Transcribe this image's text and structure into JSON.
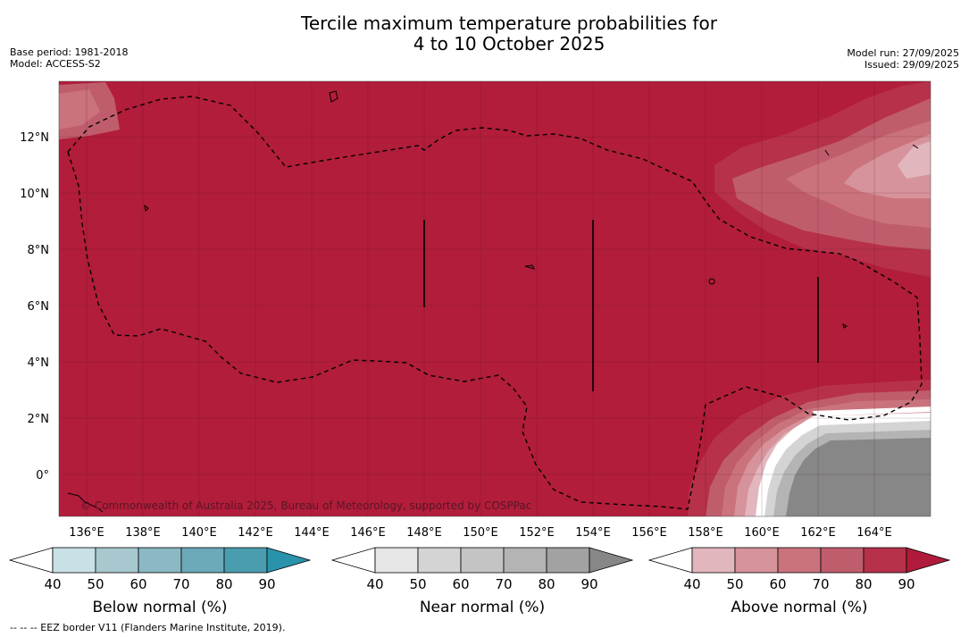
{
  "title_line1": "Tercile maximum temperature probabilities for",
  "title_line2": "4 to 10 October 2025",
  "base_period": "Base period: 1981-2018",
  "model": "Model: ACCESS-S2",
  "model_run": "Model run: 27/09/2025",
  "issued": "Issued: 29/09/2025",
  "copyright": "© Commonwealth of Australia 2025, Bureau of Meteorology, supported by COSPPac",
  "footnote": "--  --  -- EEZ border V11 (Flanders Marine Institute, 2019).",
  "lon_labels": [
    "136°E",
    "138°E",
    "140°E",
    "142°E",
    "144°E",
    "146°E",
    "148°E",
    "150°E",
    "152°E",
    "154°E",
    "156°E",
    "158°E",
    "160°E",
    "162°E",
    "164°E"
  ],
  "lat_labels": [
    "12°N",
    "10°N",
    "8°N",
    "6°N",
    "4°N",
    "2°N",
    "0°"
  ],
  "legends": [
    {
      "title": "Below normal (%)",
      "ticks": [
        "40",
        "50",
        "60",
        "70",
        "80",
        "90"
      ],
      "colors": [
        "#c8e1e7",
        "#a8c8cf",
        "#8ab8c4",
        "#6ca9b9",
        "#4a9dae",
        "#2a93ac"
      ]
    },
    {
      "title": "Near normal (%)",
      "ticks": [
        "40",
        "50",
        "60",
        "70",
        "80",
        "90"
      ],
      "colors": [
        "#e6e6e6",
        "#d4d4d4",
        "#c4c4c4",
        "#b4b4b4",
        "#a2a2a2",
        "#878787"
      ]
    },
    {
      "title": "Above normal (%)",
      "ticks": [
        "40",
        "50",
        "60",
        "70",
        "80",
        "90"
      ],
      "colors": [
        "#e2b6bd",
        "#d7939b",
        "#ca737d",
        "#c05d6c",
        "#b7314b",
        "#b11b3b"
      ]
    }
  ],
  "colors": {
    "above_90": "#b11d3b",
    "near_90": "#878787",
    "white_band": "#ffffff"
  }
}
